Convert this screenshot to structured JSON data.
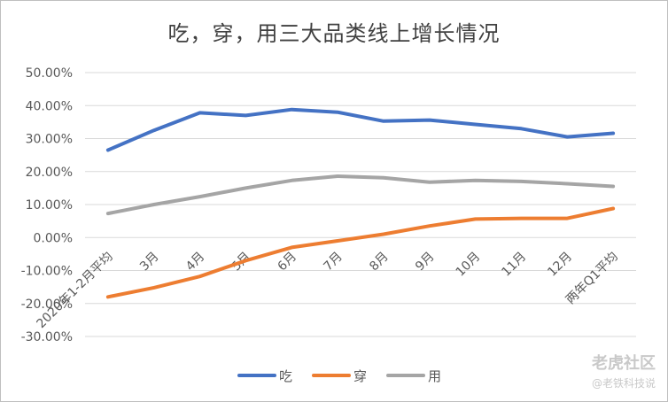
{
  "chart_data": {
    "type": "line",
    "title": "吃，穿，用三大品类线上增长情况",
    "categories": [
      "2020年1-2月平均",
      "3月",
      "4月",
      "5月",
      "6月",
      "7月",
      "8月",
      "9月",
      "10月",
      "11月",
      "12月",
      "两年Q1平均"
    ],
    "series": [
      {
        "name": "吃",
        "color": "#4472c4",
        "values": [
          26.5,
          32.5,
          37.8,
          37.0,
          38.8,
          38.0,
          35.3,
          35.6,
          34.3,
          33.0,
          30.5,
          31.6
        ]
      },
      {
        "name": "穿",
        "color": "#ed7d31",
        "values": [
          -18.0,
          -15.2,
          -11.8,
          -7.0,
          -3.0,
          -1.0,
          1.0,
          3.5,
          5.6,
          5.8,
          5.8,
          8.8
        ]
      },
      {
        "name": "用",
        "color": "#a5a5a5",
        "values": [
          7.3,
          10.0,
          12.4,
          15.0,
          17.3,
          18.6,
          18.1,
          16.8,
          17.3,
          17.0,
          16.3,
          15.5
        ]
      }
    ],
    "ylim": [
      -30,
      50
    ],
    "yticks": [
      "50.00%",
      "40.00%",
      "30.00%",
      "20.00%",
      "10.00%",
      "0.00%",
      "-10.00%",
      "-20.00%",
      "-30.00%"
    ],
    "ytick_values": [
      50,
      40,
      30,
      20,
      10,
      0,
      -10,
      -20,
      -30
    ],
    "grid": true,
    "legend_position": "bottom"
  },
  "watermark": {
    "line1": "老虎社区",
    "line2": "@老铁科技说"
  }
}
